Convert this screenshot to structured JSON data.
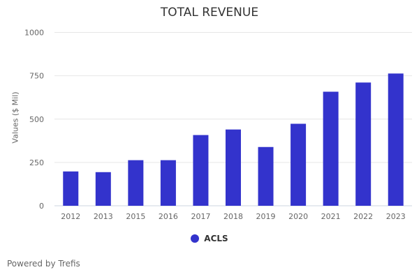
{
  "chart_data": {
    "type": "bar",
    "title": "TOTAL REVENUE",
    "xlabel": "",
    "ylabel": "Values ($ Mil)",
    "categories": [
      "2012",
      "2013",
      "2015",
      "2016",
      "2017",
      "2018",
      "2019",
      "2020",
      "2021",
      "2022",
      "2023"
    ],
    "series": [
      {
        "name": "ACLS",
        "values": [
          198,
          194,
          263,
          263,
          408,
          440,
          339,
          473,
          658,
          711,
          763
        ],
        "color": "#3333cc"
      }
    ],
    "ylim": [
      0,
      1000
    ],
    "yticks": [
      0,
      250,
      500,
      750,
      1000
    ],
    "grid": true,
    "legend": "bottom"
  },
  "footer": {
    "credit": "Powered by Trefis"
  }
}
